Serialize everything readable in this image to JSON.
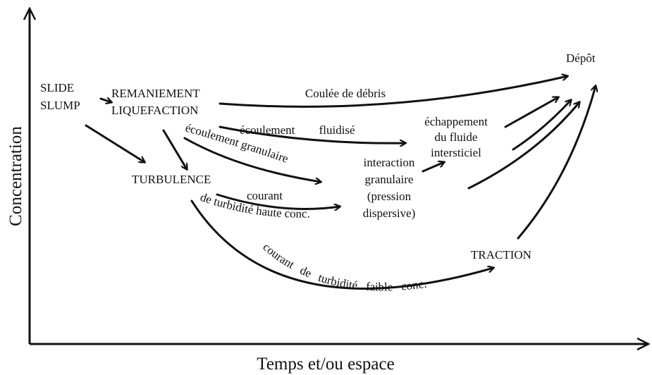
{
  "axes": {
    "y_label": "Concentration",
    "x_label": "Temps et/ou espace"
  },
  "nodes": [
    {
      "id": "slide",
      "lines": [
        "SLIDE",
        "SLUMP"
      ]
    },
    {
      "id": "remaniement",
      "lines": [
        "REMANIEMENT",
        "LIQUEFACTION"
      ]
    },
    {
      "id": "turbulence",
      "lines": [
        "TURBULENCE"
      ]
    },
    {
      "id": "interaction",
      "lines": [
        "interaction",
        "granulaire",
        "(pression",
        "dispersive)"
      ]
    },
    {
      "id": "echappement",
      "lines": [
        "échappement",
        "du fluide",
        "intersticiel"
      ]
    },
    {
      "id": "traction",
      "lines": [
        "TRACTION"
      ]
    },
    {
      "id": "depot",
      "lines": [
        "Dépôt"
      ]
    }
  ],
  "flows": [
    "Coulée de débris",
    "écoulement fluidisé",
    "écoulement granulaire",
    "courant",
    "de turbidité haute conc.",
    "courant de turbidité faible conc."
  ]
}
